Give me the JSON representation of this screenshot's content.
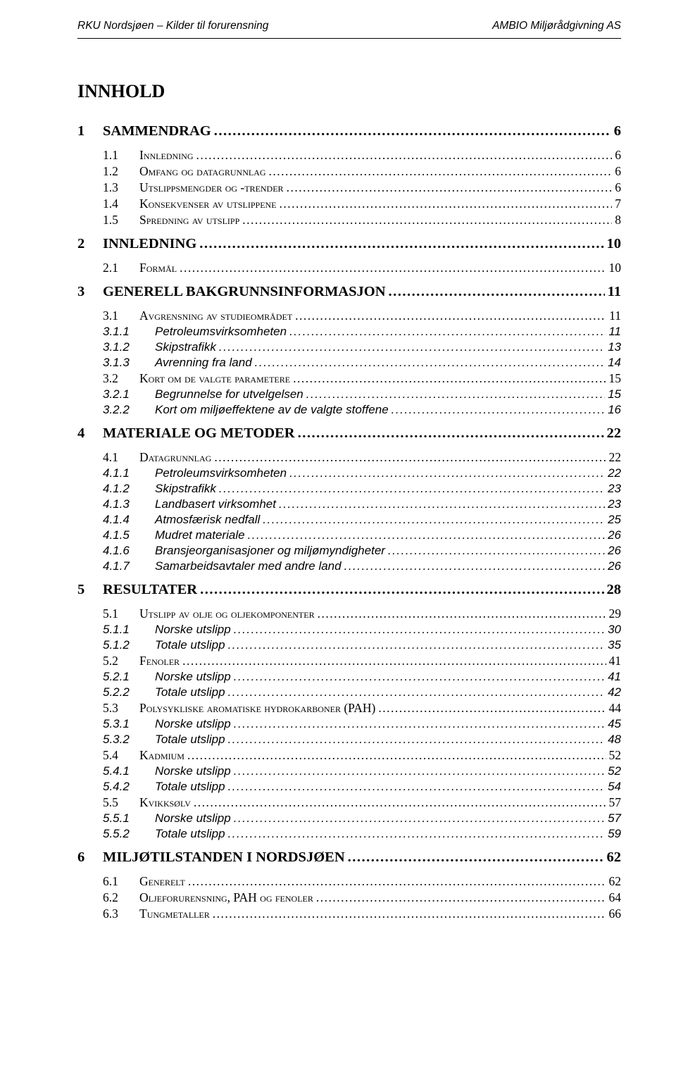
{
  "header": {
    "left": "RKU Nordsjøen – Kilder til forurensning",
    "right": "AMBIO Miljørådgivning AS"
  },
  "title": "INNHOLD",
  "toc": [
    {
      "level": 1,
      "num": "1",
      "label": "SAMMENDRAG",
      "page": "6"
    },
    {
      "level": 2,
      "num": "1.1",
      "label": "Innledning",
      "page": "6"
    },
    {
      "level": 2,
      "num": "1.2",
      "label": "Omfang og datagrunnlag",
      "page": "6"
    },
    {
      "level": 2,
      "num": "1.3",
      "label": "Utslippsmengder og -trender",
      "page": "6"
    },
    {
      "level": 2,
      "num": "1.4",
      "label": "Konsekvenser av utslippene",
      "page": "7"
    },
    {
      "level": 2,
      "num": "1.5",
      "label": "Spredning av utslipp",
      "page": "8"
    },
    {
      "level": 1,
      "num": "2",
      "label": "INNLEDNING",
      "page": "10"
    },
    {
      "level": 2,
      "num": "2.1",
      "label": "Formål",
      "page": "10"
    },
    {
      "level": 1,
      "num": "3",
      "label": "GENERELL BAKGRUNNSINFORMASJON",
      "page": "11"
    },
    {
      "level": 2,
      "num": "3.1",
      "label": "Avgrensning av studieområdet",
      "page": "11"
    },
    {
      "level": 3,
      "num": "3.1.1",
      "label": "Petroleumsvirksomheten",
      "page": "11"
    },
    {
      "level": 3,
      "num": "3.1.2",
      "label": "Skipstrafikk",
      "page": "13"
    },
    {
      "level": 3,
      "num": "3.1.3",
      "label": "Avrenning fra land",
      "page": "14"
    },
    {
      "level": 2,
      "num": "3.2",
      "label": "Kort om de valgte parametere",
      "page": "15"
    },
    {
      "level": 3,
      "num": "3.2.1",
      "label": "Begrunnelse for utvelgelsen",
      "page": "15"
    },
    {
      "level": 3,
      "num": "3.2.2",
      "label": "Kort om miljøeffektene av de valgte stoffene",
      "page": "16"
    },
    {
      "level": 1,
      "num": "4",
      "label": "MATERIALE OG METODER",
      "page": "22"
    },
    {
      "level": 2,
      "num": "4.1",
      "label": "Datagrunnlag",
      "page": "22"
    },
    {
      "level": 3,
      "num": "4.1.1",
      "label": "Petroleumsvirksomheten",
      "page": "22"
    },
    {
      "level": 3,
      "num": "4.1.2",
      "label": "Skipstrafikk",
      "page": "23"
    },
    {
      "level": 3,
      "num": "4.1.3",
      "label": "Landbasert virksomhet",
      "page": "23"
    },
    {
      "level": 3,
      "num": "4.1.4",
      "label": "Atmosfærisk nedfall",
      "page": "25"
    },
    {
      "level": 3,
      "num": "4.1.5",
      "label": "Mudret materiale",
      "page": "26"
    },
    {
      "level": 3,
      "num": "4.1.6",
      "label": "Bransjeorganisasjoner og miljømyndigheter",
      "page": "26"
    },
    {
      "level": 3,
      "num": "4.1.7",
      "label": "Samarbeidsavtaler med andre land",
      "page": "26"
    },
    {
      "level": 1,
      "num": "5",
      "label": "RESULTATER",
      "page": "28"
    },
    {
      "level": 2,
      "num": "5.1",
      "label": "Utslipp av olje og oljekomponenter",
      "page": "29"
    },
    {
      "level": 3,
      "num": "5.1.1",
      "label": "Norske utslipp",
      "page": "30"
    },
    {
      "level": 3,
      "num": "5.1.2",
      "label": "Totale utslipp",
      "page": "35"
    },
    {
      "level": 2,
      "num": "5.2",
      "label": "Fenoler",
      "page": "41"
    },
    {
      "level": 3,
      "num": "5.2.1",
      "label": "Norske utslipp",
      "page": "41"
    },
    {
      "level": 3,
      "num": "5.2.2",
      "label": "Totale utslipp",
      "page": "42"
    },
    {
      "level": 2,
      "num": "5.3",
      "label": "Polysykliske aromatiske hydrokarboner (PAH)",
      "page": "44"
    },
    {
      "level": 3,
      "num": "5.3.1",
      "label": "Norske utslipp",
      "page": "45"
    },
    {
      "level": 3,
      "num": "5.3.2",
      "label": "Totale utslipp",
      "page": "48"
    },
    {
      "level": 2,
      "num": "5.4",
      "label": "Kadmium",
      "page": "52"
    },
    {
      "level": 3,
      "num": "5.4.1",
      "label": "Norske utslipp",
      "page": "52"
    },
    {
      "level": 3,
      "num": "5.4.2",
      "label": "Totale utslipp",
      "page": "54"
    },
    {
      "level": 2,
      "num": "5.5",
      "label": "Kvikksølv",
      "page": "57"
    },
    {
      "level": 3,
      "num": "5.5.1",
      "label": "Norske utslipp",
      "page": "57"
    },
    {
      "level": 3,
      "num": "5.5.2",
      "label": "Totale utslipp",
      "page": "59"
    },
    {
      "level": 1,
      "num": "6",
      "label": "MILJØTILSTANDEN I NORDSJØEN",
      "page": "62"
    },
    {
      "level": 2,
      "num": "6.1",
      "label": "Generelt",
      "page": "62"
    },
    {
      "level": 2,
      "num": "6.2",
      "label": "Oljeforurensning, PAH og fenoler",
      "page": "64"
    },
    {
      "level": 2,
      "num": "6.3",
      "label": "Tungmetaller",
      "page": "66"
    }
  ]
}
